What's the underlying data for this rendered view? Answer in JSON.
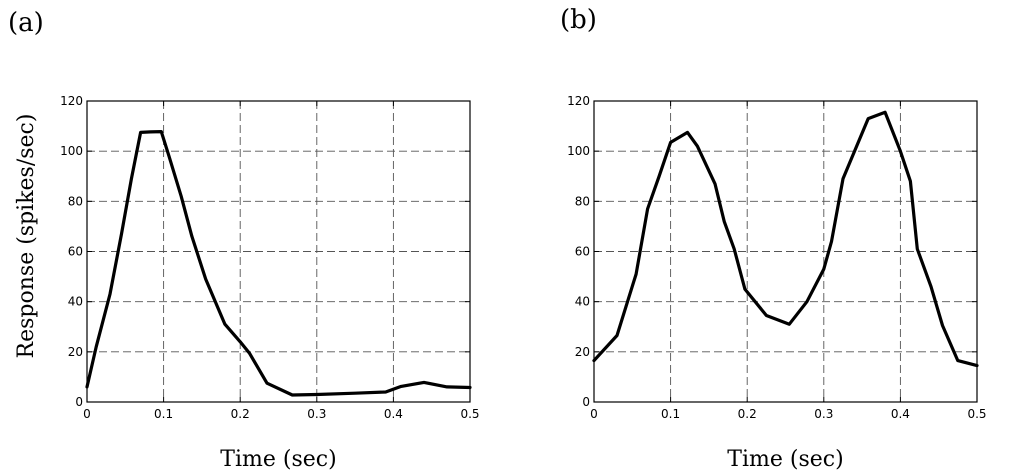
{
  "figure": {
    "ylabel": "Response (spikes/sec)"
  },
  "chart_data": [
    {
      "type": "line",
      "panel_label": "(a)",
      "xlabel": "Time (sec)",
      "xlim": [
        0,
        0.5
      ],
      "ylim": [
        0,
        120
      ],
      "x_ticks": [
        0,
        0.1,
        0.2,
        0.3,
        0.4,
        0.5
      ],
      "x_tick_labels": [
        "0",
        "0.1",
        "0.2",
        "0.3",
        "0.4",
        "0.5"
      ],
      "y_ticks": [
        0,
        20,
        40,
        60,
        80,
        100,
        120
      ],
      "y_tick_labels": [
        "0",
        "20",
        "40",
        "60",
        "80",
        "100",
        "120"
      ],
      "grid": true,
      "series": [
        {
          "x": [
            0,
            0.012,
            0.03,
            0.045,
            0.058,
            0.07,
            0.083,
            0.097,
            0.107,
            0.123,
            0.137,
            0.155,
            0.18,
            0.2,
            0.212,
            0.235,
            0.268,
            0.3,
            0.35,
            0.39,
            0.41,
            0.44,
            0.47,
            0.5
          ],
          "y": [
            6,
            22,
            43,
            67,
            89,
            107.5,
            107.7,
            107.8,
            98,
            82,
            66,
            49,
            31,
            24,
            19.5,
            7.5,
            2.8,
            3,
            3.5,
            4,
            6.2,
            7.8,
            6,
            5.8
          ]
        }
      ]
    },
    {
      "type": "line",
      "panel_label": "(b)",
      "xlabel": "Time (sec)",
      "xlim": [
        0,
        0.5
      ],
      "ylim": [
        0,
        120
      ],
      "x_ticks": [
        0,
        0.1,
        0.2,
        0.3,
        0.4,
        0.5
      ],
      "x_tick_labels": [
        "0",
        "0.1",
        "0.2",
        "0.3",
        "0.4",
        "0.5"
      ],
      "y_ticks": [
        0,
        20,
        40,
        60,
        80,
        100,
        120
      ],
      "y_tick_labels": [
        "0",
        "20",
        "40",
        "60",
        "80",
        "100",
        "120"
      ],
      "grid": true,
      "series": [
        {
          "x": [
            0,
            0.03,
            0.055,
            0.07,
            0.085,
            0.1,
            0.122,
            0.135,
            0.158,
            0.17,
            0.183,
            0.197,
            0.225,
            0.255,
            0.278,
            0.3,
            0.31,
            0.325,
            0.358,
            0.38,
            0.4,
            0.413,
            0.422,
            0.44,
            0.455,
            0.475,
            0.5
          ],
          "y": [
            16.5,
            26.5,
            51,
            77,
            90,
            103.5,
            107.5,
            102,
            87,
            72,
            61,
            45,
            34.5,
            31,
            40,
            53,
            64,
            89,
            113,
            115.5,
            100,
            88,
            61,
            46,
            30.5,
            16.5,
            14.5
          ]
        }
      ]
    }
  ]
}
